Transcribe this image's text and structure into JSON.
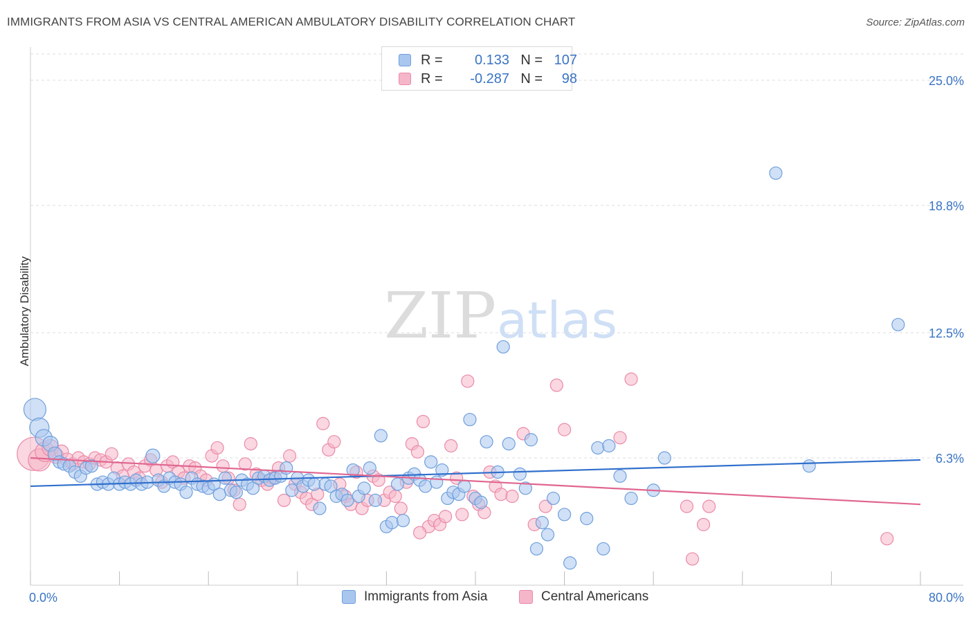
{
  "title": "IMMIGRANTS FROM ASIA VS CENTRAL AMERICAN AMBULATORY DISABILITY CORRELATION CHART",
  "source": "Source: ZipAtlas.com",
  "watermark": {
    "zip": "ZIP",
    "atlas": "atlas"
  },
  "legend": {
    "rows": [
      {
        "r_label": "R =",
        "r_value": "0.133",
        "n_label": "N =",
        "n_value": "107"
      },
      {
        "r_label": "R =",
        "r_value": "-0.287",
        "n_label": "N =",
        "n_value": "98"
      }
    ]
  },
  "colors": {
    "blue_fill": "#a9c6ee",
    "blue_stroke": "#6f9fdc",
    "blue_line": "#2f6fcc",
    "pink_fill": "#f5b6c9",
    "pink_stroke": "#ea8aa8",
    "pink_line": "#e06690",
    "tick_label": "#3a74c4",
    "grid": "#dddddd"
  },
  "chart_data": {
    "type": "scatter",
    "title": "IMMIGRANTS FROM ASIA VS CENTRAL AMERICAN AMBULATORY DISABILITY CORRELATION CHART",
    "xlabel": "",
    "ylabel": "Ambulatory Disability",
    "xlim": [
      0,
      80
    ],
    "ylim": [
      0,
      26.3
    ],
    "x_tick_labels": [
      "0.0%",
      "80.0%"
    ],
    "y_ticks": [
      6.3,
      12.5,
      18.8,
      25.0
    ],
    "y_tick_labels": [
      "6.3%",
      "12.5%",
      "18.8%",
      "25.0%"
    ],
    "grid": "horizontal dashed",
    "legend_placement": "top-center",
    "series": [
      {
        "name": "Immigrants from Asia",
        "trend": {
          "x": [
            0,
            80
          ],
          "y": [
            4.9,
            6.2
          ]
        },
        "points": [
          [
            0.4,
            8.7,
            16
          ],
          [
            0.8,
            7.8,
            14
          ],
          [
            1.2,
            7.3,
            12
          ],
          [
            1.8,
            7.0,
            11
          ],
          [
            2.2,
            6.5,
            10
          ],
          [
            2.6,
            6.1,
            9
          ],
          [
            3.0,
            6.0,
            9
          ],
          [
            3.5,
            5.9,
            9
          ],
          [
            4.0,
            5.6,
            9
          ],
          [
            4.5,
            5.4,
            9
          ],
          [
            5.0,
            5.8,
            9
          ],
          [
            5.5,
            5.9,
            9
          ],
          [
            6.0,
            5.0,
            9
          ],
          [
            6.5,
            5.1,
            9
          ],
          [
            7.0,
            5.0,
            9
          ],
          [
            7.5,
            5.3,
            9
          ],
          [
            8.0,
            5.0,
            9
          ],
          [
            8.5,
            5.1,
            9
          ],
          [
            9.0,
            5.0,
            9
          ],
          [
            9.5,
            5.2,
            9
          ],
          [
            10.0,
            5.0,
            9
          ],
          [
            10.5,
            5.1,
            9
          ],
          [
            11.0,
            6.4,
            10
          ],
          [
            11.5,
            5.2,
            9
          ],
          [
            12.0,
            4.9,
            9
          ],
          [
            12.5,
            5.3,
            9
          ],
          [
            13.0,
            5.1,
            9
          ],
          [
            13.5,
            5.0,
            9
          ],
          [
            14.0,
            4.6,
            9
          ],
          [
            14.5,
            5.3,
            9
          ],
          [
            15.0,
            5.0,
            9
          ],
          [
            15.5,
            4.9,
            9
          ],
          [
            16.0,
            4.8,
            9
          ],
          [
            16.5,
            5.0,
            9
          ],
          [
            17.0,
            4.5,
            9
          ],
          [
            17.5,
            5.3,
            9
          ],
          [
            18.0,
            4.7,
            9
          ],
          [
            18.5,
            4.6,
            9
          ],
          [
            19.0,
            5.2,
            9
          ],
          [
            19.5,
            5.0,
            9
          ],
          [
            20.0,
            4.8,
            9
          ],
          [
            20.5,
            5.3,
            9
          ],
          [
            21.0,
            5.4,
            9
          ],
          [
            21.5,
            5.2,
            9
          ],
          [
            22.0,
            5.3,
            9
          ],
          [
            22.5,
            5.4,
            9
          ],
          [
            23.0,
            5.8,
            9
          ],
          [
            23.5,
            4.7,
            9
          ],
          [
            24.0,
            5.3,
            9
          ],
          [
            24.5,
            4.9,
            9
          ],
          [
            25.0,
            5.2,
            9
          ],
          [
            25.5,
            5.0,
            9
          ],
          [
            26.0,
            3.8,
            9
          ],
          [
            26.5,
            5.0,
            9
          ],
          [
            27.0,
            4.9,
            9
          ],
          [
            27.5,
            4.4,
            9
          ],
          [
            28.0,
            4.5,
            9
          ],
          [
            28.5,
            4.2,
            9
          ],
          [
            29.0,
            5.7,
            9
          ],
          [
            29.5,
            4.4,
            9
          ],
          [
            30.0,
            4.8,
            9
          ],
          [
            30.5,
            5.8,
            9
          ],
          [
            31.0,
            4.2,
            9
          ],
          [
            31.5,
            7.4,
            9
          ],
          [
            32.0,
            2.9,
            9
          ],
          [
            32.5,
            3.1,
            9
          ],
          [
            33.0,
            5.0,
            9
          ],
          [
            33.5,
            3.2,
            9
          ],
          [
            34.0,
            5.3,
            9
          ],
          [
            34.5,
            5.5,
            9
          ],
          [
            35.0,
            5.2,
            9
          ],
          [
            35.5,
            4.9,
            9
          ],
          [
            36.0,
            6.1,
            9
          ],
          [
            36.5,
            5.1,
            9
          ],
          [
            37.0,
            5.7,
            9
          ],
          [
            37.5,
            4.3,
            9
          ],
          [
            38.0,
            4.6,
            9
          ],
          [
            38.5,
            4.5,
            9
          ],
          [
            39.0,
            4.9,
            9
          ],
          [
            39.5,
            8.2,
            9
          ],
          [
            40.0,
            4.3,
            9
          ],
          [
            40.5,
            4.1,
            9
          ],
          [
            41.0,
            7.1,
            9
          ],
          [
            42.0,
            5.6,
            9
          ],
          [
            42.5,
            11.8,
            9
          ],
          [
            43.0,
            7.0,
            9
          ],
          [
            44.0,
            5.5,
            9
          ],
          [
            44.5,
            4.8,
            9
          ],
          [
            45.0,
            7.2,
            9
          ],
          [
            46.0,
            3.1,
            9
          ],
          [
            46.5,
            2.5,
            9
          ],
          [
            47.0,
            4.3,
            9
          ],
          [
            48.0,
            3.5,
            9
          ],
          [
            48.5,
            1.1,
            9
          ],
          [
            50.0,
            3.3,
            9
          ],
          [
            51.0,
            6.8,
            9
          ],
          [
            51.5,
            1.8,
            9
          ],
          [
            52.0,
            6.9,
            9
          ],
          [
            53.0,
            5.4,
            9
          ],
          [
            54.0,
            4.3,
            9
          ],
          [
            56.0,
            4.7,
            9
          ],
          [
            57.0,
            6.3,
            9
          ],
          [
            45.5,
            1.8,
            9
          ],
          [
            67.0,
            20.4,
            9
          ],
          [
            70.0,
            5.9,
            9
          ],
          [
            78.0,
            12.9,
            9
          ]
        ]
      },
      {
        "name": "Central Americans",
        "trend": {
          "x": [
            0,
            80
          ],
          "y": [
            6.3,
            4.0
          ]
        },
        "points": [
          [
            0.3,
            6.5,
            24
          ],
          [
            0.8,
            6.2,
            16
          ],
          [
            1.3,
            6.6,
            14
          ],
          [
            1.8,
            6.8,
            12
          ],
          [
            2.3,
            6.4,
            11
          ],
          [
            2.8,
            6.6,
            10
          ],
          [
            3.3,
            6.2,
            10
          ],
          [
            3.8,
            6.0,
            9
          ],
          [
            4.3,
            6.3,
            9
          ],
          [
            4.8,
            6.1,
            9
          ],
          [
            5.3,
            6.0,
            9
          ],
          [
            5.8,
            6.3,
            9
          ],
          [
            6.3,
            6.2,
            9
          ],
          [
            6.8,
            6.1,
            9
          ],
          [
            7.3,
            6.5,
            9
          ],
          [
            7.8,
            5.8,
            9
          ],
          [
            8.3,
            5.4,
            9
          ],
          [
            8.8,
            6.0,
            9
          ],
          [
            9.3,
            5.6,
            9
          ],
          [
            9.8,
            5.3,
            9
          ],
          [
            10.3,
            5.9,
            9
          ],
          [
            10.8,
            6.2,
            9
          ],
          [
            11.3,
            5.7,
            9
          ],
          [
            11.8,
            5.1,
            9
          ],
          [
            12.3,
            5.9,
            9
          ],
          [
            12.8,
            6.1,
            9
          ],
          [
            13.3,
            5.6,
            9
          ],
          [
            13.8,
            5.3,
            9
          ],
          [
            14.3,
            5.9,
            9
          ],
          [
            14.8,
            5.8,
            9
          ],
          [
            15.3,
            5.4,
            9
          ],
          [
            15.8,
            5.2,
            9
          ],
          [
            16.3,
            6.4,
            9
          ],
          [
            16.8,
            6.8,
            9
          ],
          [
            17.3,
            5.9,
            9
          ],
          [
            17.8,
            5.3,
            9
          ],
          [
            18.3,
            4.7,
            9
          ],
          [
            18.8,
            4.0,
            9
          ],
          [
            19.3,
            6.0,
            9
          ],
          [
            19.8,
            7.0,
            9
          ],
          [
            20.3,
            5.5,
            9
          ],
          [
            20.8,
            5.2,
            9
          ],
          [
            21.3,
            5.0,
            9
          ],
          [
            21.8,
            5.3,
            9
          ],
          [
            22.3,
            5.8,
            9
          ],
          [
            22.8,
            4.2,
            9
          ],
          [
            23.3,
            6.4,
            9
          ],
          [
            23.8,
            5.0,
            9
          ],
          [
            24.3,
            4.6,
            9
          ],
          [
            24.8,
            4.3,
            9
          ],
          [
            25.3,
            4.0,
            9
          ],
          [
            25.8,
            4.5,
            9
          ],
          [
            26.3,
            8.0,
            9
          ],
          [
            26.8,
            6.7,
            9
          ],
          [
            27.3,
            7.1,
            9
          ],
          [
            27.8,
            5.0,
            9
          ],
          [
            28.3,
            4.4,
            9
          ],
          [
            28.8,
            4.0,
            9
          ],
          [
            29.3,
            5.6,
            9
          ],
          [
            29.8,
            3.8,
            9
          ],
          [
            30.3,
            4.2,
            9
          ],
          [
            30.8,
            5.4,
            9
          ],
          [
            31.3,
            5.2,
            9
          ],
          [
            31.8,
            4.2,
            9
          ],
          [
            32.3,
            4.6,
            9
          ],
          [
            32.8,
            4.4,
            9
          ],
          [
            33.3,
            3.8,
            9
          ],
          [
            33.8,
            5.1,
            9
          ],
          [
            34.3,
            7.0,
            9
          ],
          [
            34.8,
            6.6,
            9
          ],
          [
            35.3,
            8.1,
            9
          ],
          [
            35.8,
            2.9,
            9
          ],
          [
            36.3,
            3.2,
            9
          ],
          [
            36.8,
            3.0,
            9
          ],
          [
            37.3,
            3.4,
            9
          ],
          [
            37.8,
            6.9,
            9
          ],
          [
            38.3,
            5.3,
            9
          ],
          [
            38.8,
            3.5,
            9
          ],
          [
            39.3,
            10.1,
            9
          ],
          [
            39.8,
            4.4,
            9
          ],
          [
            40.3,
            4.0,
            9
          ],
          [
            40.8,
            3.6,
            9
          ],
          [
            41.3,
            5.6,
            9
          ],
          [
            41.8,
            4.9,
            9
          ],
          [
            42.3,
            4.5,
            9
          ],
          [
            43.3,
            4.4,
            9
          ],
          [
            44.3,
            7.5,
            9
          ],
          [
            45.3,
            3.0,
            9
          ],
          [
            46.3,
            3.9,
            9
          ],
          [
            47.3,
            9.9,
            9
          ],
          [
            48.0,
            7.7,
            9
          ],
          [
            53.0,
            7.3,
            9
          ],
          [
            54.0,
            10.2,
            9
          ],
          [
            59.0,
            3.9,
            9
          ],
          [
            59.5,
            1.3,
            9
          ],
          [
            60.5,
            3.0,
            9
          ],
          [
            61.0,
            3.9,
            9
          ],
          [
            77.0,
            2.3,
            9
          ],
          [
            35.0,
            2.6,
            9
          ]
        ]
      }
    ]
  },
  "bottom_legend": [
    "Immigrants from Asia",
    "Central Americans"
  ]
}
